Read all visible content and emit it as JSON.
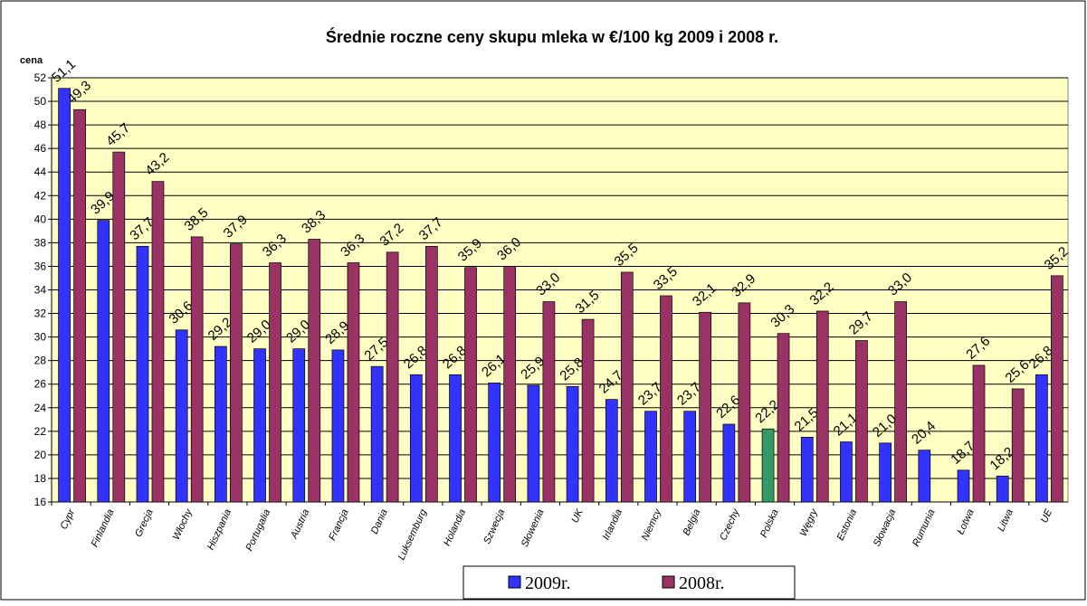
{
  "chart_data": {
    "type": "bar",
    "title": "Średnie roczne ceny skupu mleka w €/100 kg  2009 i 2008 r.",
    "y_label": "cena",
    "categories": [
      "Cypr",
      "Finlandia",
      "Grecja",
      "Włochy",
      "Hiszpania",
      "Portugalia",
      "Austria",
      "Francja",
      "Dania",
      "Luksemburg",
      "Holandia",
      "Szwecja",
      "Słowenia",
      "UK",
      "Irlandia",
      "Niemcy",
      "Belgia",
      "Czechy",
      "Polska",
      "Węgry",
      "Estonia",
      "Słowacja",
      "Rumunia",
      "Łotwa",
      "Litwa",
      "UE"
    ],
    "series": [
      {
        "name": "2009r.",
        "color": "#3333ff",
        "colors": [
          "#3333ff",
          "#3333ff",
          "#3333ff",
          "#3333ff",
          "#3333ff",
          "#3333ff",
          "#3333ff",
          "#3333ff",
          "#3333ff",
          "#3333ff",
          "#3333ff",
          "#3333ff",
          "#3333ff",
          "#3333ff",
          "#3333ff",
          "#3333ff",
          "#3333ff",
          "#3333ff",
          "#339966",
          "#3333ff",
          "#3333ff",
          "#3333ff",
          "#3333ff",
          "#3333ff",
          "#3333ff",
          "#3333ff"
        ],
        "values": [
          51.1,
          39.9,
          37.7,
          30.6,
          29.2,
          29.0,
          29.0,
          28.9,
          27.5,
          26.8,
          26.8,
          26.1,
          25.9,
          25.8,
          24.7,
          23.7,
          23.7,
          22.6,
          22.2,
          21.5,
          21.1,
          21.0,
          20.4,
          18.7,
          18.2,
          26.8
        ],
        "value_labels": [
          "51,1",
          "39,9",
          "37,7",
          "30,6",
          "29,2",
          "29,0",
          "29,0",
          "28,9",
          "27,5",
          "26,8",
          "26,8",
          "26,1",
          "25,9",
          "25,8",
          "24,7",
          "23,7",
          "23,7",
          "22,6",
          "22,2",
          "21,5",
          "21,1",
          "21,0",
          "20,4",
          "18,7",
          "18,2",
          "26,8"
        ]
      },
      {
        "name": "2008r.",
        "color": "#993366",
        "values": [
          49.3,
          45.7,
          43.2,
          38.5,
          37.9,
          36.3,
          38.3,
          36.3,
          37.2,
          37.7,
          35.9,
          36.0,
          33.0,
          31.5,
          35.5,
          33.5,
          32.1,
          32.9,
          30.3,
          32.2,
          29.7,
          33.0,
          null,
          27.6,
          25.6,
          35.2
        ],
        "value_labels": [
          "49,3",
          "45,7",
          "43,2",
          "38,5",
          "37,9",
          "36,3",
          "38,3",
          "36,3",
          "37,2",
          "37,7",
          "35,9",
          "36,0",
          "33,0",
          "31,5",
          "35,5",
          "33,5",
          "32,1",
          "32,9",
          "30,3",
          "32,2",
          "29,7",
          "33,0",
          null,
          "27,6",
          "25,6",
          "35,2"
        ]
      }
    ],
    "ylim": [
      16,
      52
    ],
    "yticks": [
      16,
      18,
      20,
      22,
      24,
      26,
      28,
      30,
      32,
      34,
      36,
      38,
      40,
      42,
      44,
      46,
      48,
      50,
      52
    ],
    "grid": true,
    "legend": "bottom"
  }
}
